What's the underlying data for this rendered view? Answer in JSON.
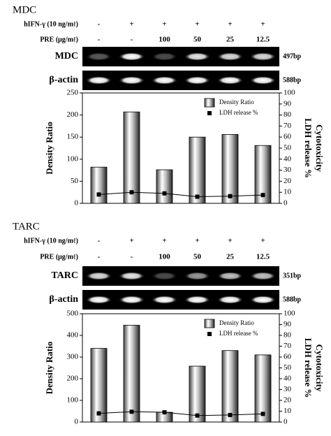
{
  "panels": [
    {
      "label": "MDC",
      "ifn_label": "hIFN-γ (10 ng/mℓ)",
      "ifn": [
        "-",
        "+",
        "+",
        "+",
        "+",
        "+"
      ],
      "pre_label": "PRE (μg/mℓ)",
      "pre": [
        "-",
        "-",
        "100",
        "50",
        "25",
        "12.5"
      ],
      "gels": [
        {
          "name": "MDC",
          "size": "497bp"
        },
        {
          "name": "β-actin",
          "size": "588bp"
        }
      ]
    },
    {
      "label": "TARC",
      "ifn_label": "hIFN-γ (10 ng/mℓ)",
      "ifn": [
        "-",
        "+",
        "+",
        "+",
        "+",
        "+"
      ],
      "pre_label": "PRE (μg/mℓ)",
      "pre": [
        "-",
        "-",
        "100",
        "50",
        "25",
        "12.5"
      ],
      "gels": [
        {
          "name": "TARC",
          "size": "351bp"
        },
        {
          "name": "β-actin",
          "size": "588bp"
        }
      ]
    }
  ],
  "chart_data": [
    {
      "type": "bar",
      "ylabel": "Density Ratio",
      "y2label": [
        "Cytotoxicity",
        "LDH release %"
      ],
      "ylim": [
        0,
        250
      ],
      "yticks": [
        0,
        50,
        100,
        150,
        200,
        250
      ],
      "y2lim": [
        0,
        100
      ],
      "y2ticks": [
        0,
        10,
        20,
        30,
        40,
        50,
        60,
        70,
        80,
        90,
        100
      ],
      "series": [
        {
          "name": "Density Ratio",
          "color": "#888888",
          "values": [
            82,
            207,
            76,
            150,
            156,
            131
          ]
        },
        {
          "name": "LDH release %",
          "type": "line",
          "axis": "y2",
          "color": "#000000",
          "values": [
            8,
            10,
            9,
            6,
            6.5,
            7.5
          ]
        }
      ]
    },
    {
      "type": "bar",
      "ylabel": "Density Ratio",
      "y2label": [
        "Cytotoxicity",
        "LDH release %"
      ],
      "ylim": [
        0,
        500
      ],
      "yticks": [
        0,
        100,
        200,
        300,
        400,
        500
      ],
      "y2lim": [
        0,
        100
      ],
      "y2ticks": [
        0,
        10,
        20,
        30,
        40,
        50,
        60,
        70,
        80,
        90,
        100
      ],
      "series": [
        {
          "name": "Density Ratio",
          "color": "#888888",
          "values": [
            340,
            447,
            45,
            258,
            330,
            310
          ]
        },
        {
          "name": "LDH release %",
          "type": "line",
          "axis": "y2",
          "color": "#000000",
          "values": [
            8,
            9.5,
            9,
            6,
            6.5,
            7.5
          ]
        }
      ]
    }
  ]
}
